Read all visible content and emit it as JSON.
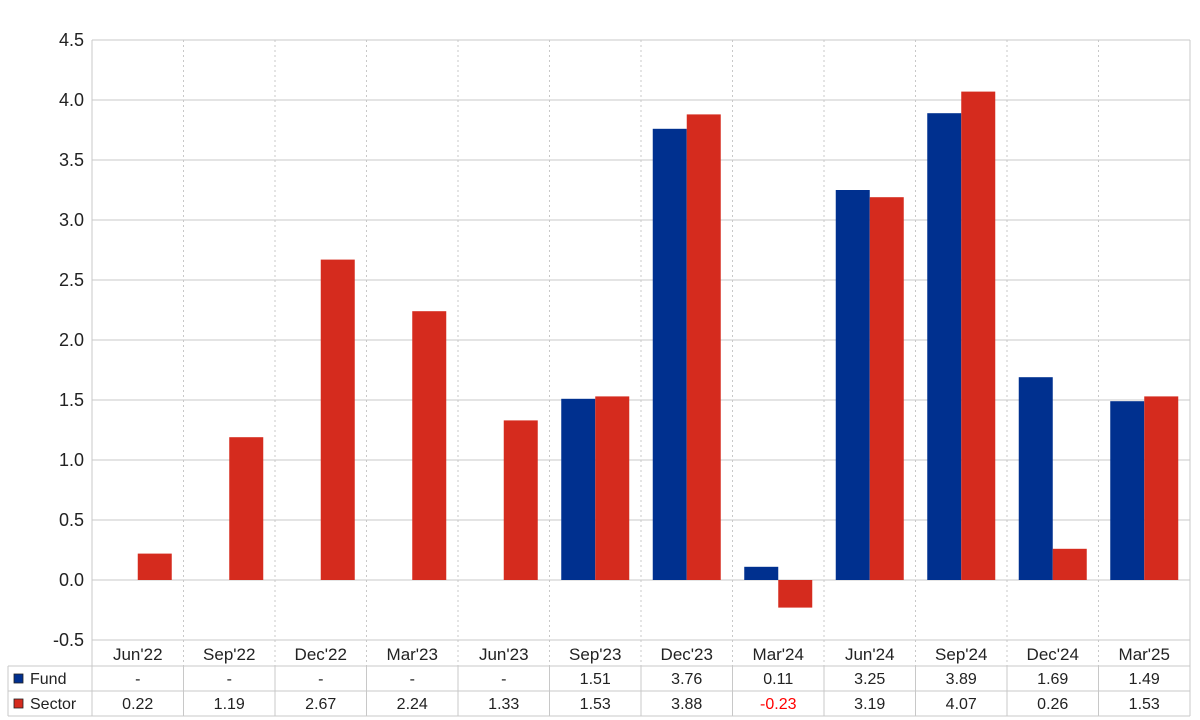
{
  "chart_data": {
    "type": "bar",
    "categories": [
      "Jun'22",
      "Sep'22",
      "Dec'22",
      "Mar'23",
      "Jun'23",
      "Sep'23",
      "Dec'23",
      "Mar'24",
      "Jun'24",
      "Sep'24",
      "Dec'24",
      "Mar'25"
    ],
    "series": [
      {
        "name": "Fund",
        "color": "#00308f",
        "values": [
          null,
          null,
          null,
          null,
          null,
          1.51,
          3.76,
          0.11,
          3.25,
          3.89,
          1.69,
          1.49
        ],
        "table_labels": [
          "-",
          "-",
          "-",
          "-",
          "-",
          "1.51",
          "3.76",
          "0.11",
          "3.25",
          "3.89",
          "1.69",
          "1.49"
        ]
      },
      {
        "name": "Sector",
        "color": "#d52b1e",
        "values": [
          0.22,
          1.19,
          2.67,
          2.24,
          1.33,
          1.53,
          3.88,
          -0.23,
          3.19,
          4.07,
          0.26,
          1.53
        ],
        "table_labels": [
          "0.22",
          "1.19",
          "2.67",
          "2.24",
          "1.33",
          "1.53",
          "3.88",
          "-0.23",
          "3.19",
          "4.07",
          "0.26",
          "1.53"
        ]
      }
    ],
    "title": "",
    "xlabel": "",
    "ylabel": "",
    "ylim": [
      -0.5,
      4.5
    ],
    "yticks": [
      "-0.5",
      "0.0",
      "0.5",
      "1.0",
      "1.5",
      "2.0",
      "2.5",
      "3.0",
      "3.5",
      "4.0",
      "4.5"
    ],
    "grid": true,
    "legend": "data-table-left",
    "negative_label_color": "#ff0000"
  }
}
